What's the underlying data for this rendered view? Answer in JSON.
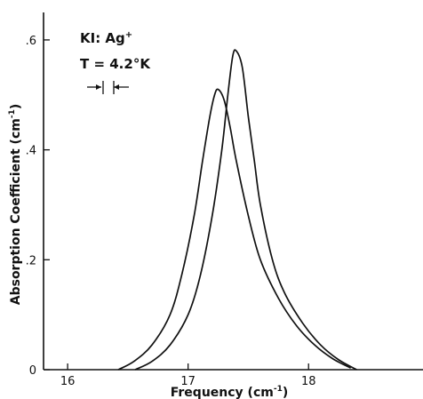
{
  "chart_data": {
    "type": "line",
    "xlabel": "Frequency (cm",
    "xlabel_sup": "-1",
    "xlabel_end": ")",
    "ylabel": "Absorption Coefficient (cm",
    "ylabel_sup": "-1",
    "ylabel_end": ")",
    "xlim": [
      15.8,
      18.95
    ],
    "ylim": [
      0,
      0.65
    ],
    "x_ticks": [
      16,
      17,
      18
    ],
    "x_tick_labels": [
      "16",
      "17",
      "18"
    ],
    "y_ticks": [
      0,
      0.2,
      0.4,
      0.6
    ],
    "y_tick_labels": [
      "0",
      ".2",
      ".4",
      ".6"
    ],
    "grid": false,
    "annotations": {
      "line1_main": "KI: Ag",
      "line1_sup": "+",
      "line2": "T = 4.2°K"
    },
    "series": [
      {
        "x": [
          16.42,
          16.55,
          16.7,
          16.85,
          16.95,
          17.05,
          17.12,
          17.18,
          17.22,
          17.25,
          17.3,
          17.35,
          17.4,
          17.5,
          17.6,
          17.75,
          17.9,
          18.05,
          18.2,
          18.35
        ],
        "y": [
          0.0,
          0.015,
          0.045,
          0.1,
          0.175,
          0.28,
          0.38,
          0.46,
          0.5,
          0.51,
          0.49,
          0.44,
          0.38,
          0.28,
          0.2,
          0.13,
          0.08,
          0.045,
          0.02,
          0.003
        ]
      },
      {
        "x": [
          16.56,
          16.7,
          16.85,
          17.0,
          17.1,
          17.2,
          17.28,
          17.33,
          17.37,
          17.4,
          17.45,
          17.5,
          17.55,
          17.6,
          17.7,
          17.8,
          17.95,
          18.1,
          18.25,
          18.4
        ],
        "y": [
          0.0,
          0.015,
          0.045,
          0.1,
          0.17,
          0.28,
          0.4,
          0.5,
          0.57,
          0.58,
          0.55,
          0.46,
          0.38,
          0.3,
          0.2,
          0.14,
          0.085,
          0.045,
          0.018,
          0.0
        ]
      }
    ]
  }
}
